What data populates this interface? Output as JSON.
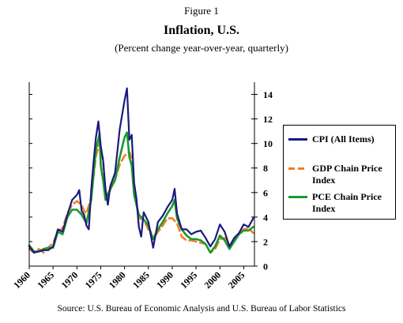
{
  "figure_label": "Figure 1",
  "title": "Inflation, U.S.",
  "subtitle": "(Percent change year-over-year, quarterly)",
  "source": "Source: U.S. Bureau of Economic Analysis and U.S. Bureau of Labor Statistics",
  "chart_data": {
    "type": "line",
    "title": "Inflation, U.S.",
    "subtitle": "(Percent change year-over-year, quarterly)",
    "xlabel": "",
    "ylabel": "",
    "xlim": [
      1960,
      2007.25
    ],
    "ylim": [
      0,
      15
    ],
    "x_ticks": [
      1960,
      1965,
      1970,
      1975,
      1980,
      1985,
      1990,
      1995,
      2000,
      2005
    ],
    "y_ticks": [
      0,
      2,
      4,
      6,
      8,
      10,
      12,
      14
    ],
    "y_axis_side": "right",
    "grid": false,
    "legend_position": "right",
    "series": [
      {
        "name": "CPI (All Items)",
        "color": "#1a1a7e",
        "style": "solid",
        "x": [
          1960,
          1961,
          1962,
          1963,
          1964,
          1965,
          1966,
          1967,
          1968,
          1969,
          1970,
          1970.5,
          1971,
          1971.5,
          1972,
          1972.5,
          1973,
          1973.5,
          1974,
          1974.5,
          1975,
          1975.5,
          1976,
          1976.5,
          1977,
          1978,
          1979,
          1980,
          1980.5,
          1981,
          1981.5,
          1982,
          1982.5,
          1983,
          1983.5,
          1984,
          1985,
          1986,
          1987,
          1988,
          1989,
          1990,
          1990.5,
          1991,
          1992,
          1993,
          1994,
          1995,
          1996,
          1997,
          1998,
          1999,
          2000,
          2001,
          2002,
          2003,
          2004,
          2005,
          2006,
          2007
        ],
        "y": [
          1.6,
          1.1,
          1.2,
          1.3,
          1.3,
          1.6,
          3.0,
          2.8,
          4.2,
          5.4,
          5.8,
          6.2,
          4.5,
          4.2,
          3.3,
          3.0,
          6.2,
          8.5,
          10.5,
          11.8,
          9.8,
          8.6,
          6.3,
          5.0,
          6.5,
          7.6,
          11.2,
          13.5,
          14.5,
          10.3,
          10.7,
          6.8,
          5.5,
          3.2,
          2.4,
          4.4,
          3.6,
          1.5,
          3.6,
          4.1,
          4.8,
          5.4,
          6.3,
          4.3,
          3.0,
          3.0,
          2.6,
          2.8,
          2.9,
          2.3,
          1.6,
          2.2,
          3.4,
          2.8,
          1.6,
          2.3,
          2.7,
          3.4,
          3.2,
          3.9
        ]
      },
      {
        "name": "GDP Chain Price Index",
        "color": "#f07f2a",
        "style": "dashed",
        "x": [
          1960,
          1961,
          1962,
          1963,
          1964,
          1965,
          1966,
          1967,
          1968,
          1969,
          1970,
          1971,
          1971.5,
          1972,
          1973,
          1974,
          1974.75,
          1975,
          1975.5,
          1976,
          1977,
          1978,
          1979,
          1980,
          1981,
          1981.5,
          1982,
          1983,
          1984,
          1985,
          1986,
          1987,
          1988,
          1989,
          1990,
          1991,
          1992,
          1993,
          1994,
          1995,
          1996,
          1997,
          1998,
          1999,
          2000,
          2001,
          2002,
          2003,
          2004,
          2005,
          2006,
          2007
        ],
        "y": [
          1.4,
          1.1,
          1.4,
          1.1,
          1.5,
          1.9,
          2.8,
          3.1,
          4.3,
          5.0,
          5.3,
          5.0,
          4.5,
          4.3,
          5.6,
          9.0,
          10.0,
          9.4,
          8.7,
          5.5,
          6.2,
          7.1,
          8.3,
          9.0,
          9.3,
          8.8,
          6.4,
          3.9,
          3.8,
          3.0,
          2.2,
          2.8,
          3.3,
          3.9,
          3.9,
          3.5,
          2.4,
          2.1,
          2.1,
          2.0,
          1.9,
          1.8,
          1.1,
          1.4,
          2.2,
          2.3,
          1.6,
          2.0,
          2.7,
          3.0,
          3.1,
          2.7
        ]
      },
      {
        "name": "PCE Chain Price Index",
        "color": "#1a9a2c",
        "style": "solid",
        "x": [
          1960,
          1961,
          1962,
          1963,
          1964,
          1965,
          1966,
          1967,
          1968,
          1969,
          1970,
          1971,
          1972,
          1973,
          1974,
          1974.75,
          1975,
          1975.5,
          1976,
          1977,
          1978,
          1979,
          1980,
          1980.5,
          1981,
          1981.5,
          1982,
          1983,
          1984,
          1985,
          1986,
          1987,
          1988,
          1989,
          1990,
          1990.5,
          1991,
          1992,
          1993,
          1994,
          1995,
          1996,
          1997,
          1998,
          1999,
          2000,
          2001,
          2002,
          2003,
          2004,
          2005,
          2006,
          2007
        ],
        "y": [
          1.7,
          1.2,
          1.2,
          1.4,
          1.5,
          1.5,
          2.8,
          2.6,
          4.0,
          4.6,
          4.6,
          4.2,
          3.5,
          5.4,
          9.5,
          10.8,
          8.2,
          7.0,
          5.4,
          6.3,
          7.0,
          8.9,
          10.5,
          10.9,
          8.9,
          8.2,
          5.8,
          4.2,
          3.8,
          3.3,
          2.2,
          3.0,
          3.6,
          4.3,
          4.9,
          5.4,
          3.9,
          3.0,
          2.5,
          2.2,
          2.2,
          2.1,
          1.8,
          1.1,
          1.6,
          2.5,
          2.1,
          1.4,
          2.0,
          2.6,
          2.9,
          2.9,
          3.2
        ]
      }
    ]
  }
}
